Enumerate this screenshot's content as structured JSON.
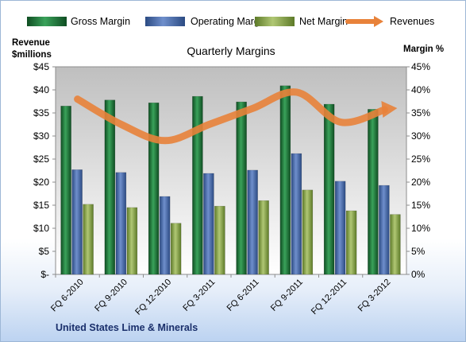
{
  "chart_data": {
    "type": "bar",
    "title": "Quarterly Margins",
    "left_axis_title": [
      "Revenue",
      "$millions"
    ],
    "right_axis_title": "Margin %",
    "footer": "United States Lime & Minerals",
    "categories": [
      "FQ 6-2010",
      "FQ 9-2010",
      "FQ 12-2010",
      "FQ 3-2011",
      "FQ 6-2011",
      "FQ 9-2011",
      "FQ 12-2011",
      "FQ 3-2012"
    ],
    "left_ticks": [
      "$-",
      "$5",
      "$10",
      "$15",
      "$20",
      "$25",
      "$30",
      "$35",
      "$40",
      "$45"
    ],
    "right_ticks": [
      "0%",
      "5%",
      "10%",
      "15%",
      "20%",
      "25%",
      "30%",
      "35%",
      "40%",
      "45%"
    ],
    "left_ylim": [
      0,
      45
    ],
    "right_ylim": [
      0,
      45
    ],
    "grid": false,
    "legend_position": "top",
    "series": [
      {
        "name": "Gross Margin",
        "axis": "right",
        "kind": "bar",
        "color": "#1e7a3c",
        "values": [
          36.5,
          37.8,
          37.2,
          38.6,
          37.4,
          40.9,
          36.9,
          35.8
        ]
      },
      {
        "name": "Operating Margin",
        "axis": "right",
        "kind": "bar",
        "color": "#4a6fb0",
        "values": [
          22.7,
          22.1,
          16.9,
          21.9,
          22.6,
          26.2,
          20.2,
          19.3
        ]
      },
      {
        "name": "Net Margin",
        "axis": "right",
        "kind": "bar",
        "color": "#8aa84a",
        "values": [
          15.2,
          14.5,
          11.1,
          14.8,
          16.0,
          18.3,
          13.8,
          13.0
        ]
      },
      {
        "name": "Revenues",
        "axis": "left",
        "kind": "line",
        "color": "#e8823a",
        "values": [
          38.0,
          32.5,
          29.0,
          32.5,
          36.0,
          39.5,
          33.0,
          35.7
        ]
      }
    ]
  }
}
